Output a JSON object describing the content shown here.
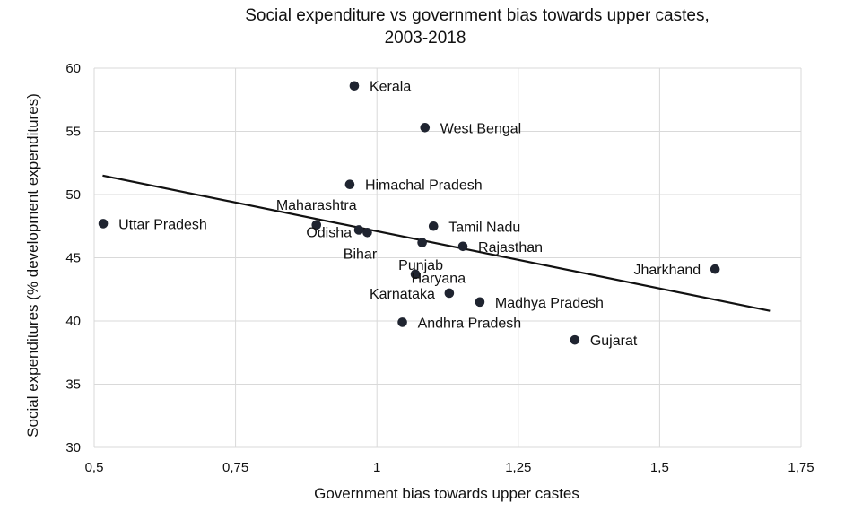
{
  "chart_data": {
    "type": "scatter",
    "title_lines": [
      "Social expenditure vs government bias towards upper castes,",
      "2003-2018"
    ],
    "xlabel": "Government bias towards upper castes",
    "ylabel": "Social expenditures (% development expenditures)",
    "xlim": [
      0.5,
      1.75
    ],
    "ylim": [
      30,
      60
    ],
    "x_ticks": [
      0.5,
      0.75,
      1,
      1.25,
      1.5,
      1.75
    ],
    "x_tick_labels": [
      "0,5",
      "0,75",
      "1",
      "1,25",
      "1,5",
      "1,75"
    ],
    "y_ticks": [
      30,
      35,
      40,
      45,
      50,
      55,
      60
    ],
    "y_tick_labels": [
      "30",
      "35",
      "40",
      "45",
      "50",
      "55",
      "60"
    ],
    "grid": true,
    "marker_color": "#1f2430",
    "points": [
      {
        "label": "Kerala",
        "x": 0.96,
        "y": 58.6
      },
      {
        "label": "West Bengal",
        "x": 1.085,
        "y": 55.3
      },
      {
        "label": "Himachal Pradesh",
        "x": 0.952,
        "y": 50.8
      },
      {
        "label": "Uttar Pradesh",
        "x": 0.516,
        "y": 47.7
      },
      {
        "label": "Maharashtra",
        "x": 0.893,
        "y": 47.6
      },
      {
        "label": "Odisha",
        "x": 0.968,
        "y": 47.2
      },
      {
        "label": "Bihar",
        "x": 0.983,
        "y": 47.0
      },
      {
        "label": "Tamil Nadu",
        "x": 1.1,
        "y": 47.5
      },
      {
        "label": "Rajasthan",
        "x": 1.152,
        "y": 45.9
      },
      {
        "label": "Jharkhand",
        "x": 1.598,
        "y": 44.1
      },
      {
        "label": "Punjab",
        "x": 1.068,
        "y": 43.7
      },
      {
        "label": "Haryana",
        "x": 1.08,
        "y": 46.2
      },
      {
        "label": "Karnataka",
        "x": 1.128,
        "y": 42.2
      },
      {
        "label": "Madhya Pradesh",
        "x": 1.182,
        "y": 41.5
      },
      {
        "label": "Andhra Pradesh",
        "x": 1.045,
        "y": 39.9
      },
      {
        "label": "Gujarat",
        "x": 1.35,
        "y": 38.5
      }
    ],
    "trendline": {
      "type": "linear",
      "x": [
        0.515,
        1.695
      ],
      "y": [
        51.5,
        40.8
      ]
    }
  }
}
